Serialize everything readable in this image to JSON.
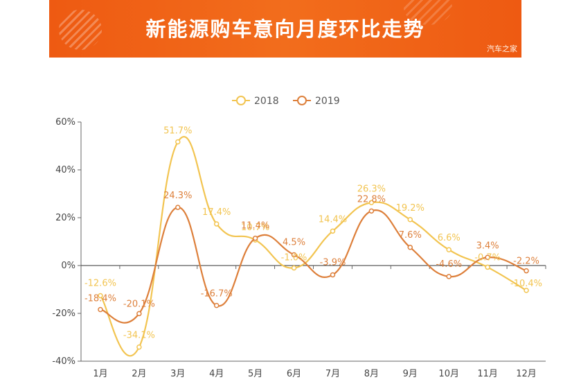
{
  "banner": {
    "title": "新能源购车意向月度环比走势",
    "watermark": "汽车之家"
  },
  "chart_data": {
    "type": "line",
    "title": "新能源购车意向月度环比走势",
    "categories": [
      "1月",
      "2月",
      "3月",
      "4月",
      "5月",
      "6月",
      "7月",
      "8月",
      "9月",
      "10月",
      "11月",
      "12月"
    ],
    "ylim": [
      -40,
      60
    ],
    "yticks": [
      -40,
      -20,
      0,
      20,
      40,
      60
    ],
    "yticks_suffix": "%",
    "legend_position": "top-center",
    "series": [
      {
        "name": "2018",
        "color": "#f2c450",
        "values": [
          -12.6,
          -34.1,
          51.7,
          17.4,
          10.7,
          -1.0,
          14.4,
          26.3,
          19.2,
          6.6,
          -0.7,
          -10.4
        ],
        "labels": [
          "-12.6%",
          "-34.1%",
          "51.7%",
          "17.4%",
          "10.7%",
          "-1.0%",
          "14.4%",
          "26.3%",
          "19.2%",
          "6.6%",
          "-0.7%",
          "-10.4%"
        ]
      },
      {
        "name": "2019",
        "color": "#dd7f3a",
        "values": [
          -18.4,
          -20.1,
          24.3,
          -16.7,
          11.4,
          4.5,
          -3.9,
          22.8,
          7.6,
          -4.6,
          3.4,
          -2.2
        ],
        "labels": [
          "-18.4%",
          "-20.1%",
          "24.3%",
          "-16.7%",
          "11.4%",
          "4.5%",
          "-3.9%",
          "22.8%",
          "7.6%",
          "-4.6%",
          "3.4%",
          "-2.2%"
        ]
      }
    ]
  }
}
